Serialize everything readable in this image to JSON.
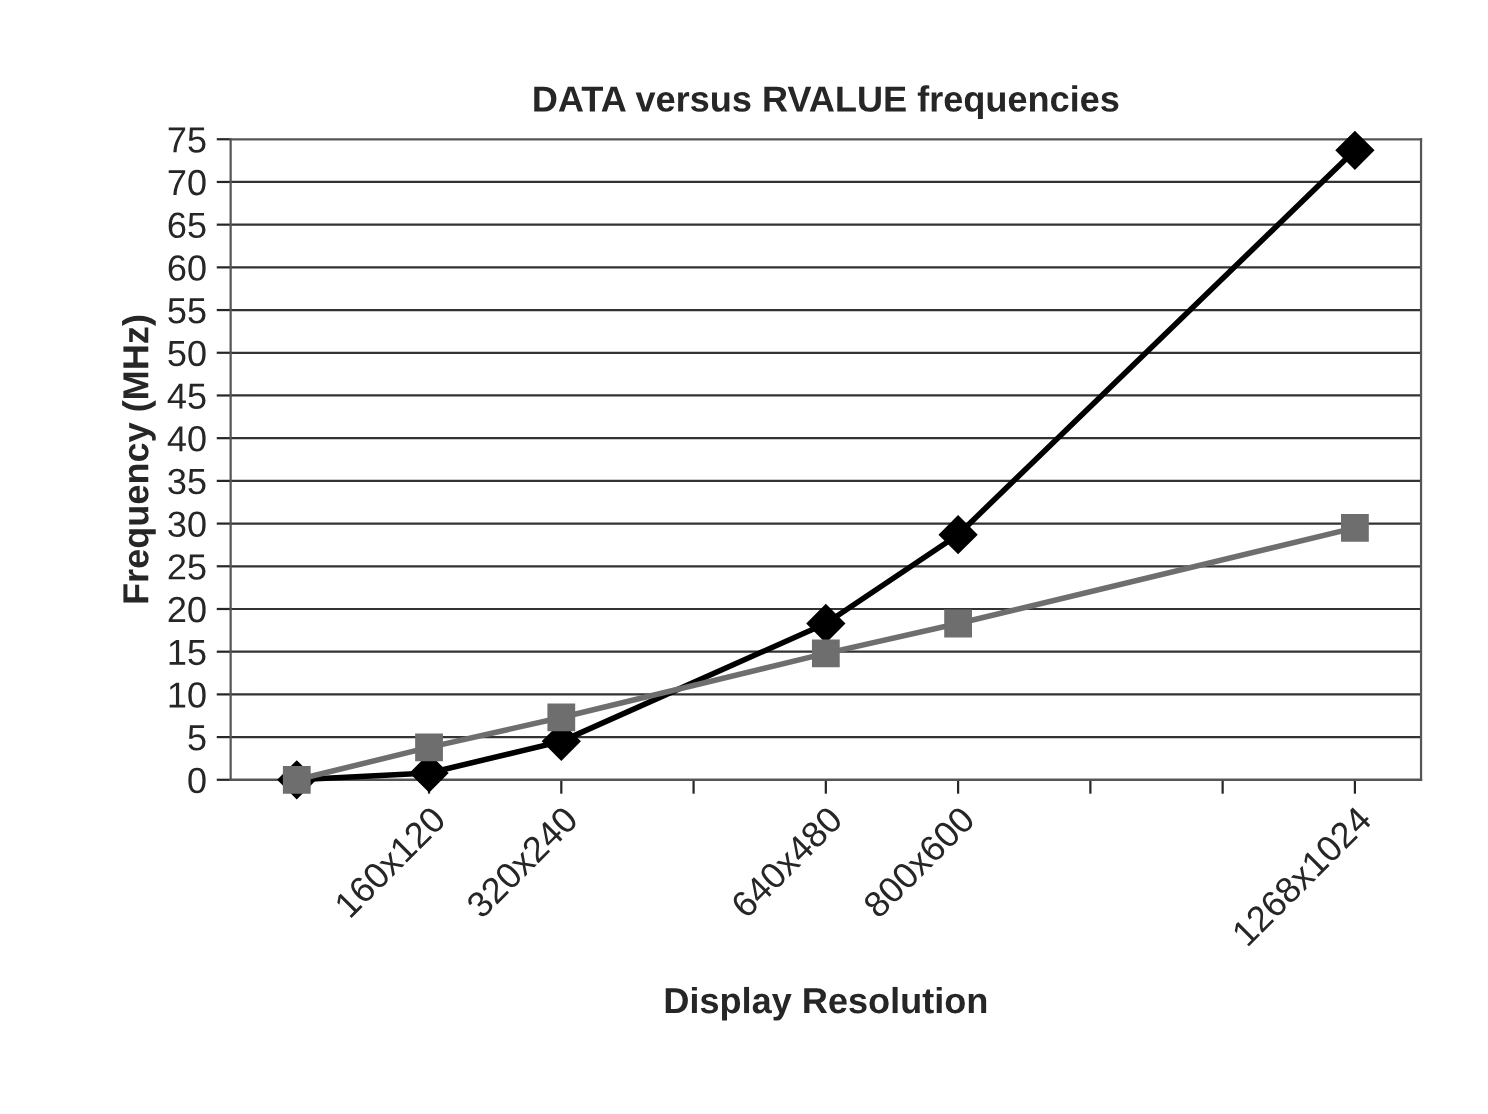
{
  "chart_data": {
    "type": "line",
    "title": "DATA versus RVALUE frequencies",
    "xlabel": "Display Resolution",
    "ylabel": "Frequency (MHz)",
    "categories": [
      null,
      "160x120",
      "320x240",
      null,
      "640x480",
      "800x600",
      null,
      null,
      "1268x1024"
    ],
    "series": [
      {
        "color": "#000000",
        "marker": "diamond",
        "values": [
          0,
          0.8,
          4.5,
          null,
          18.3,
          28.7,
          null,
          null,
          73.7
        ]
      },
      {
        "color": "#6e6e6e",
        "marker": "square",
        "values": [
          0,
          3.8,
          7.3,
          null,
          14.8,
          18.3,
          null,
          null,
          29.5
        ]
      }
    ],
    "ylim": [
      0,
      75
    ],
    "yticks": [
      0,
      5,
      10,
      15,
      20,
      25,
      30,
      35,
      40,
      45,
      50,
      55,
      60,
      65,
      70,
      75
    ],
    "grid": "y",
    "legend": false
  }
}
